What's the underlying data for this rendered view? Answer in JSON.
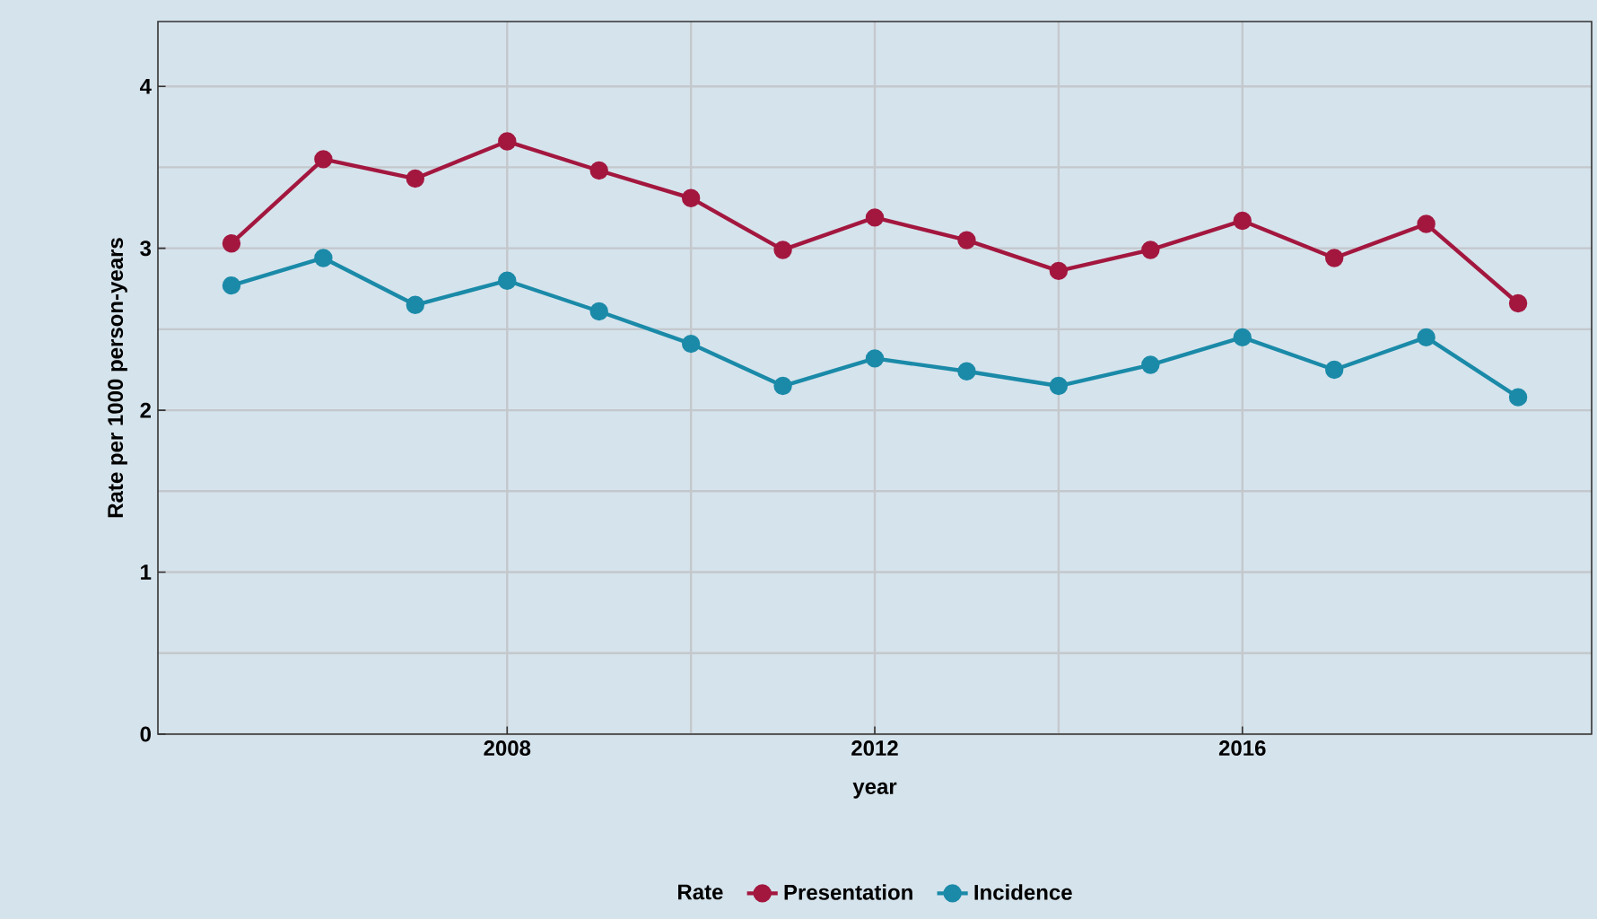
{
  "chart_data": {
    "type": "line",
    "xlabel": "year",
    "ylabel": "Rate per 1000 person-years",
    "legend_title": "Rate",
    "x": [
      2005,
      2006,
      2007,
      2008,
      2009,
      2010,
      2011,
      2012,
      2013,
      2014,
      2015,
      2016,
      2017,
      2018,
      2019
    ],
    "series": [
      {
        "name": "Presentation",
        "color": "#a3173f",
        "values": [
          3.03,
          3.55,
          3.43,
          3.66,
          3.48,
          3.31,
          2.99,
          3.19,
          3.05,
          2.86,
          2.99,
          3.17,
          2.94,
          3.15,
          2.66
        ]
      },
      {
        "name": "Incidence",
        "color": "#1a8aa8",
        "values": [
          2.77,
          2.94,
          2.65,
          2.8,
          2.61,
          2.41,
          2.15,
          2.32,
          2.24,
          2.15,
          2.28,
          2.45,
          2.25,
          2.45,
          2.08
        ]
      }
    ],
    "xlim": [
      2004.2,
      2019.8
    ],
    "ylim": [
      0,
      4.4
    ],
    "xticks": [
      2008,
      2012,
      2016
    ],
    "yticks": [
      0,
      1,
      2,
      3,
      4
    ],
    "grid": true,
    "legend": "bottom",
    "marker": "circle",
    "line_style": "solid"
  }
}
